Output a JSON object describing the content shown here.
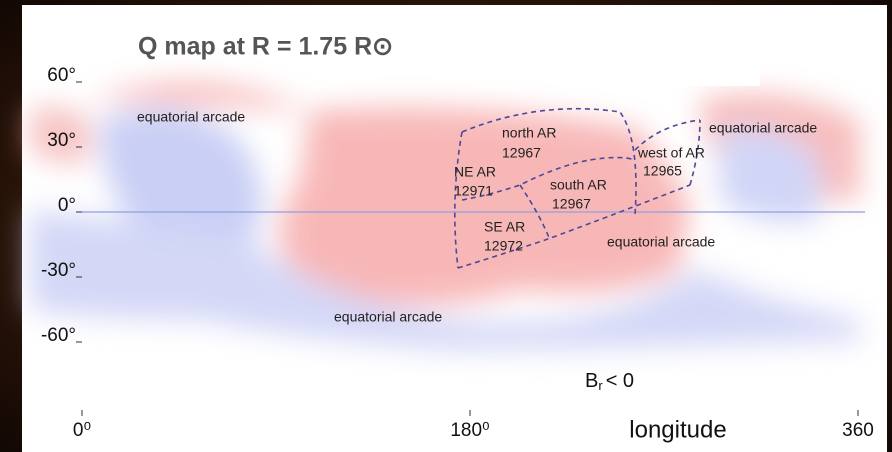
{
  "chart_data": {
    "type": "map",
    "title": "Q map at R =  1.75 R⊙",
    "xlabel": "longitude",
    "xlim": [
      0,
      360
    ],
    "ylim": [
      -90,
      90
    ],
    "xticks": [
      {
        "value": 0,
        "label": "0⁰"
      },
      {
        "value": 180,
        "label": "180⁰"
      },
      {
        "value": 360,
        "label": "360"
      }
    ],
    "yticks": [
      {
        "value": 60,
        "label": "60°"
      },
      {
        "value": 30,
        "label": "30°"
      },
      {
        "value": 0,
        "label": "0°"
      },
      {
        "value": -30,
        "label": "-30°"
      },
      {
        "value": -60,
        "label": "-60°"
      }
    ],
    "annotations": [
      "equatorial arcade",
      "north AR",
      "12967",
      "NE AR",
      "12971",
      "south AR",
      "12967",
      "SE AR",
      "12972",
      "west of AR",
      "12965",
      "equatorial arcade",
      "equatorial arcade",
      "equatorial arcade"
    ],
    "polarity": {
      "symbol": "B",
      "subscript": "r",
      "relation": "< 0"
    }
  }
}
